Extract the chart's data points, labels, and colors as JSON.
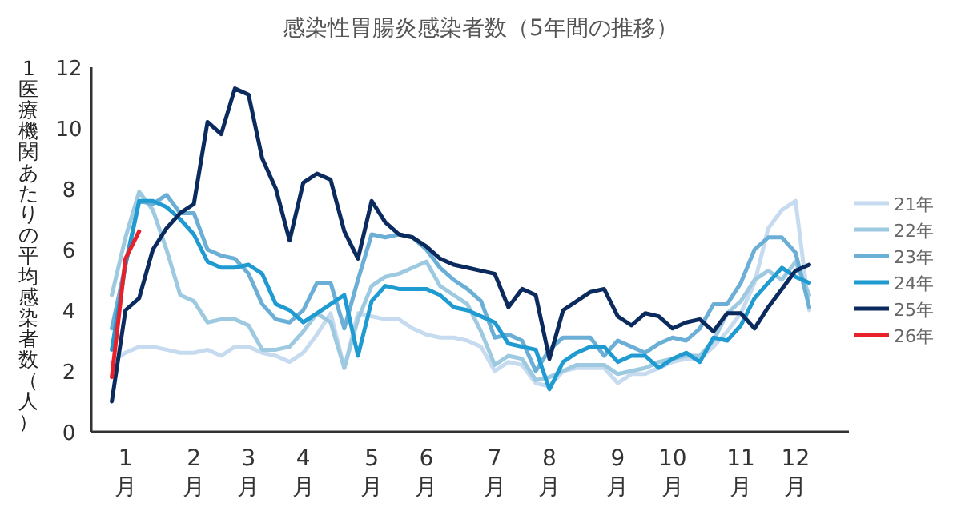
{
  "chart_data": {
    "type": "line",
    "title": "感染性胃腸炎感染者数（5年間の推移）",
    "ylabel": "1医療機関あたりの平均感染者数（人）",
    "categories": [
      null,
      "1月",
      null,
      null,
      null,
      null,
      "2月",
      null,
      null,
      null,
      "3月",
      null,
      null,
      null,
      "4月",
      null,
      null,
      null,
      null,
      "5月",
      null,
      null,
      null,
      "6月",
      null,
      null,
      null,
      null,
      "7月",
      null,
      null,
      null,
      "8月",
      null,
      null,
      null,
      null,
      "9月",
      null,
      null,
      null,
      "10月",
      null,
      null,
      null,
      null,
      "11月",
      null,
      null,
      null,
      "12月",
      null
    ],
    "ylim": [
      0,
      12
    ],
    "yticks": [
      0,
      2,
      4,
      6,
      8,
      10,
      12
    ],
    "grid": false,
    "legend": "right",
    "line_style": "solid",
    "marker": "none",
    "series": [
      {
        "name": "21年",
        "color": "#c6dbef",
        "values": [
          2.3,
          2.6,
          2.8,
          2.8,
          2.7,
          2.6,
          2.6,
          2.7,
          2.5,
          2.8,
          2.8,
          2.6,
          2.5,
          2.3,
          2.6,
          3.2,
          3.9,
          2.1,
          3.9,
          3.8,
          3.7,
          3.7,
          3.4,
          3.2,
          3.1,
          3.1,
          3.0,
          2.8,
          2.0,
          2.3,
          2.2,
          1.6,
          1.5,
          2.0,
          2.1,
          2.1,
          2.1,
          1.6,
          1.9,
          1.9,
          2.1,
          2.3,
          2.4,
          2.4,
          2.8,
          3.3,
          3.9,
          4.9,
          6.7,
          7.3,
          7.6,
          4.0
        ]
      },
      {
        "name": "22年",
        "color": "#9ecae1",
        "values": [
          4.5,
          6.4,
          7.9,
          7.3,
          6.0,
          4.5,
          4.3,
          3.6,
          3.7,
          3.7,
          3.5,
          2.7,
          2.7,
          2.8,
          3.3,
          3.9,
          3.6,
          2.1,
          3.7,
          4.8,
          5.1,
          5.2,
          5.4,
          5.6,
          4.8,
          4.5,
          4.2,
          3.3,
          2.2,
          2.5,
          2.4,
          1.7,
          1.8,
          2.0,
          2.2,
          2.2,
          2.2,
          1.9,
          2.0,
          2.1,
          2.3,
          2.4,
          2.5,
          2.5,
          3.0,
          3.9,
          4.3,
          5.0,
          5.3,
          5.0,
          5.6,
          4.5
        ]
      },
      {
        "name": "23年",
        "color": "#6baed6",
        "values": [
          3.4,
          5.5,
          7.6,
          7.5,
          7.8,
          7.2,
          7.2,
          6.0,
          5.8,
          5.7,
          5.2,
          4.2,
          3.7,
          3.6,
          4.0,
          4.9,
          4.9,
          3.4,
          5.0,
          6.5,
          6.4,
          6.5,
          6.4,
          6.0,
          5.4,
          5.0,
          4.7,
          4.3,
          3.1,
          3.2,
          3.0,
          2.0,
          2.7,
          3.1,
          3.1,
          3.1,
          2.5,
          3.0,
          2.8,
          2.6,
          2.9,
          3.1,
          3.0,
          3.4,
          4.2,
          4.2,
          4.9,
          6.0,
          6.4,
          6.4,
          5.9,
          4.1
        ]
      },
      {
        "name": "24年",
        "color": "#1f9bd1",
        "values": [
          2.7,
          5.5,
          7.6,
          7.6,
          7.4,
          7.0,
          6.5,
          5.6,
          5.4,
          5.4,
          5.5,
          5.2,
          4.2,
          4.0,
          3.6,
          3.9,
          4.2,
          4.5,
          2.5,
          4.3,
          4.8,
          4.7,
          4.7,
          4.7,
          4.5,
          4.1,
          4.0,
          3.8,
          3.6,
          2.9,
          2.8,
          2.7,
          1.4,
          2.3,
          2.6,
          2.8,
          2.8,
          2.3,
          2.5,
          2.5,
          2.1,
          2.4,
          2.6,
          2.3,
          3.1,
          3.0,
          3.5,
          4.4,
          4.9,
          5.4,
          5.1,
          4.9
        ]
      },
      {
        "name": "25年",
        "color": "#0b2a5e",
        "values": [
          1.0,
          4.0,
          4.4,
          6.0,
          6.7,
          7.2,
          7.5,
          10.2,
          9.8,
          11.3,
          11.1,
          9.0,
          8.0,
          6.3,
          8.2,
          8.5,
          8.3,
          6.6,
          5.7,
          7.6,
          6.9,
          6.5,
          6.4,
          6.1,
          5.7,
          5.5,
          5.4,
          5.3,
          5.2,
          4.1,
          4.7,
          4.5,
          2.4,
          4.0,
          4.3,
          4.6,
          4.7,
          3.8,
          3.5,
          3.9,
          3.8,
          3.4,
          3.6,
          3.7,
          3.3,
          3.9,
          3.9,
          3.4,
          4.1,
          4.7,
          5.3,
          5.5
        ]
      },
      {
        "name": "26年",
        "color": "#e8202a",
        "values": [
          1.8,
          5.7,
          6.6,
          null,
          null,
          null,
          null,
          null,
          null,
          null,
          null,
          null,
          null,
          null,
          null,
          null,
          null,
          null,
          null,
          null,
          null,
          null,
          null,
          null,
          null,
          null,
          null,
          null,
          null,
          null,
          null,
          null,
          null,
          null,
          null,
          null,
          null,
          null,
          null,
          null,
          null,
          null,
          null,
          null,
          null,
          null,
          null,
          null,
          null,
          null,
          null,
          null
        ]
      }
    ]
  }
}
